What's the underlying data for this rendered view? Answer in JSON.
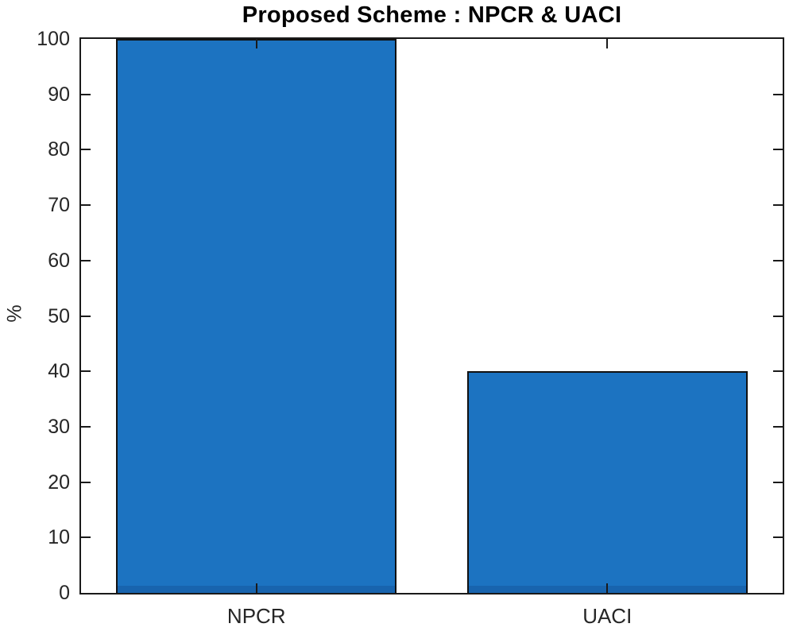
{
  "figure": {
    "background_color": "#ffffff"
  },
  "chart_data": {
    "type": "bar",
    "title": "Proposed Scheme : NPCR & UACI",
    "categories": [
      "NPCR",
      "UACI"
    ],
    "values": [
      100,
      40
    ],
    "xlabel": "",
    "ylabel": "%",
    "ylim": [
      0,
      100
    ],
    "yticks": [
      0,
      10,
      20,
      30,
      40,
      50,
      60,
      70,
      80,
      90,
      100
    ],
    "grid": false,
    "legend": "none",
    "bar_width_fraction": 0.8,
    "bar_color": "#1c73c1",
    "bar_edge_color": "#111111",
    "axis_color": "#1a1a1a",
    "tick_label_color": "#262626",
    "title_color": "#000000",
    "tick_direction": "in"
  }
}
